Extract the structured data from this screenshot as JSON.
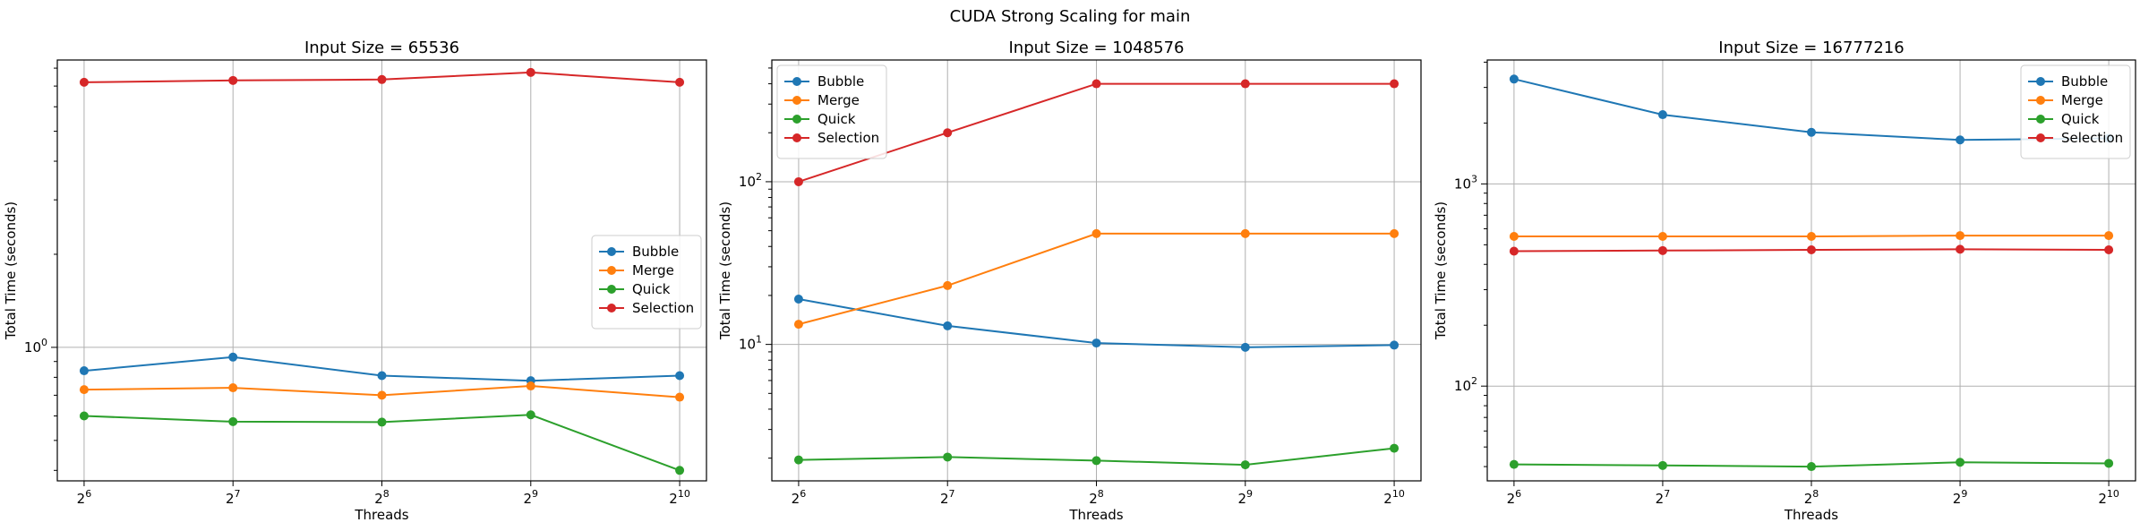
{
  "figure": {
    "suptitle": "CUDA Strong Scaling for main"
  },
  "chart_data": [
    {
      "type": "line",
      "title": "Input Size = 65536",
      "xlabel": "Threads",
      "ylabel": "Total Time (seconds)",
      "xscale": "log2",
      "yscale": "log",
      "x": [
        64,
        128,
        256,
        512,
        1024
      ],
      "xtick_labels": [
        {
          "base": "2",
          "exp": "6"
        },
        {
          "base": "2",
          "exp": "7"
        },
        {
          "base": "2",
          "exp": "8"
        },
        {
          "base": "2",
          "exp": "9"
        },
        {
          "base": "2",
          "exp": "10"
        }
      ],
      "ylim": [
        0.37,
        8.5
      ],
      "ytick_labels": [
        {
          "value": 1,
          "base": "10",
          "exp": "0"
        }
      ],
      "grid": true,
      "legend": "center-right",
      "series": [
        {
          "name": "Bubble",
          "color": "#1f77b4",
          "values": [
            0.84,
            0.93,
            0.81,
            0.78,
            0.81
          ]
        },
        {
          "name": "Merge",
          "color": "#ff7f0e",
          "values": [
            0.73,
            0.74,
            0.7,
            0.75,
            0.69
          ]
        },
        {
          "name": "Quick",
          "color": "#2ca02c",
          "values": [
            0.6,
            0.575,
            0.573,
            0.605,
            0.4
          ]
        },
        {
          "name": "Selection",
          "color": "#d62728",
          "values": [
            7.2,
            7.3,
            7.35,
            7.75,
            7.2
          ]
        }
      ]
    },
    {
      "type": "line",
      "title": "Input Size = 1048576",
      "xlabel": "Threads",
      "ylabel": "Total Time (seconds)",
      "xscale": "log2",
      "yscale": "log",
      "x": [
        64,
        128,
        256,
        512,
        1024
      ],
      "xtick_labels": [
        {
          "base": "2",
          "exp": "6"
        },
        {
          "base": "2",
          "exp": "7"
        },
        {
          "base": "2",
          "exp": "8"
        },
        {
          "base": "2",
          "exp": "9"
        },
        {
          "base": "2",
          "exp": "10"
        }
      ],
      "ylim": [
        1.45,
        560
      ],
      "ytick_labels": [
        {
          "value": 10,
          "base": "10",
          "exp": "1"
        },
        {
          "value": 100,
          "base": "10",
          "exp": "2"
        }
      ],
      "grid": true,
      "legend": "top-left",
      "series": [
        {
          "name": "Bubble",
          "color": "#1f77b4",
          "values": [
            19.0,
            13.0,
            10.2,
            9.6,
            9.9
          ]
        },
        {
          "name": "Merge",
          "color": "#ff7f0e",
          "values": [
            13.3,
            23.0,
            48.0,
            48.0,
            48.0
          ]
        },
        {
          "name": "Quick",
          "color": "#2ca02c",
          "values": [
            1.95,
            2.03,
            1.93,
            1.82,
            2.3
          ]
        },
        {
          "name": "Selection",
          "color": "#d62728",
          "values": [
            100,
            200,
            400,
            400,
            400
          ]
        }
      ]
    },
    {
      "type": "line",
      "title": "Input Size = 16777216",
      "xlabel": "Threads",
      "ylabel": "Total Time (seconds)",
      "xscale": "log2",
      "yscale": "log",
      "x": [
        64,
        128,
        256,
        512,
        1024
      ],
      "xtick_labels": [
        {
          "base": "2",
          "exp": "6"
        },
        {
          "base": "2",
          "exp": "7"
        },
        {
          "base": "2",
          "exp": "8"
        },
        {
          "base": "2",
          "exp": "9"
        },
        {
          "base": "2",
          "exp": "10"
        }
      ],
      "ylim": [
        34,
        4100
      ],
      "ytick_labels": [
        {
          "value": 100,
          "base": "10",
          "exp": "2"
        },
        {
          "value": 1000,
          "base": "10",
          "exp": "3"
        }
      ],
      "grid": true,
      "legend": "top-right",
      "series": [
        {
          "name": "Bubble",
          "color": "#1f77b4",
          "values": [
            3300,
            2200,
            1800,
            1650,
            1680
          ]
        },
        {
          "name": "Merge",
          "color": "#ff7f0e",
          "values": [
            550,
            550,
            550,
            555,
            555
          ]
        },
        {
          "name": "Quick",
          "color": "#2ca02c",
          "values": [
            41,
            40.5,
            40,
            42,
            41.5
          ]
        },
        {
          "name": "Selection",
          "color": "#d62728",
          "values": [
            465,
            468,
            472,
            475,
            472
          ]
        }
      ]
    }
  ]
}
